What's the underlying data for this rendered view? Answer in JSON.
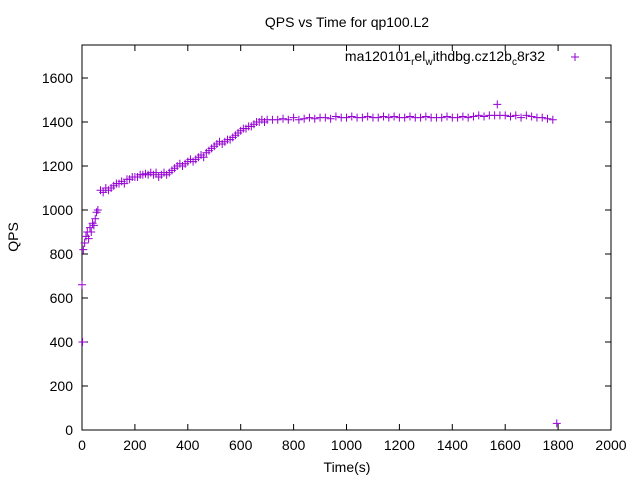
{
  "chart_data": {
    "type": "scatter",
    "title": "QPS vs Time for qp100.L2",
    "xlabel": "Time(s)",
    "ylabel": "QPS",
    "xlim": [
      0,
      2000
    ],
    "ylim": [
      0,
      1750
    ],
    "xticks": [
      0,
      200,
      400,
      600,
      800,
      1000,
      1200,
      1400,
      1600,
      1800,
      2000
    ],
    "yticks": [
      0,
      200,
      400,
      600,
      800,
      1000,
      1200,
      1400,
      1600
    ],
    "grid": false,
    "legend_position": "top-right",
    "marker": "plus",
    "color": "#9400d3",
    "legend_text": {
      "p1": "ma120101",
      "s1": "r",
      "p2": "el",
      "s2": "w",
      "p3": "ithdbg.cz12b",
      "s3": "c",
      "p4": "8r32"
    },
    "series": [
      {
        "points": [
          [
            0,
            660
          ],
          [
            2,
            400
          ],
          [
            5,
            820
          ],
          [
            10,
            850
          ],
          [
            15,
            880
          ],
          [
            20,
            900
          ],
          [
            25,
            870
          ],
          [
            30,
            920
          ],
          [
            35,
            900
          ],
          [
            40,
            940
          ],
          [
            45,
            930
          ],
          [
            50,
            960
          ],
          [
            55,
            990
          ],
          [
            60,
            1000
          ],
          [
            70,
            1090
          ],
          [
            80,
            1080
          ],
          [
            90,
            1100
          ],
          [
            100,
            1090
          ],
          [
            110,
            1100
          ],
          [
            120,
            1110
          ],
          [
            130,
            1120
          ],
          [
            140,
            1120
          ],
          [
            150,
            1130
          ],
          [
            160,
            1120
          ],
          [
            170,
            1140
          ],
          [
            180,
            1140
          ],
          [
            190,
            1150
          ],
          [
            200,
            1150
          ],
          [
            210,
            1150
          ],
          [
            220,
            1160
          ],
          [
            230,
            1160
          ],
          [
            240,
            1165
          ],
          [
            250,
            1160
          ],
          [
            260,
            1170
          ],
          [
            270,
            1160
          ],
          [
            280,
            1170
          ],
          [
            290,
            1150
          ],
          [
            300,
            1160
          ],
          [
            310,
            1170
          ],
          [
            320,
            1160
          ],
          [
            330,
            1170
          ],
          [
            340,
            1180
          ],
          [
            350,
            1190
          ],
          [
            360,
            1200
          ],
          [
            370,
            1210
          ],
          [
            380,
            1200
          ],
          [
            390,
            1210
          ],
          [
            400,
            1220
          ],
          [
            410,
            1230
          ],
          [
            420,
            1220
          ],
          [
            430,
            1230
          ],
          [
            440,
            1240
          ],
          [
            450,
            1250
          ],
          [
            460,
            1240
          ],
          [
            470,
            1260
          ],
          [
            480,
            1270
          ],
          [
            490,
            1280
          ],
          [
            500,
            1290
          ],
          [
            510,
            1300
          ],
          [
            520,
            1310
          ],
          [
            530,
            1300
          ],
          [
            540,
            1310
          ],
          [
            550,
            1320
          ],
          [
            560,
            1320
          ],
          [
            570,
            1330
          ],
          [
            580,
            1340
          ],
          [
            590,
            1350
          ],
          [
            600,
            1360
          ],
          [
            610,
            1370
          ],
          [
            620,
            1370
          ],
          [
            630,
            1380
          ],
          [
            640,
            1380
          ],
          [
            650,
            1390
          ],
          [
            660,
            1400
          ],
          [
            670,
            1400
          ],
          [
            680,
            1410
          ],
          [
            690,
            1400
          ],
          [
            700,
            1410
          ],
          [
            720,
            1410
          ],
          [
            740,
            1410
          ],
          [
            760,
            1415
          ],
          [
            780,
            1410
          ],
          [
            800,
            1420
          ],
          [
            820,
            1410
          ],
          [
            840,
            1415
          ],
          [
            860,
            1420
          ],
          [
            880,
            1415
          ],
          [
            900,
            1420
          ],
          [
            920,
            1420
          ],
          [
            940,
            1415
          ],
          [
            960,
            1425
          ],
          [
            980,
            1420
          ],
          [
            1000,
            1420
          ],
          [
            1020,
            1425
          ],
          [
            1040,
            1420
          ],
          [
            1060,
            1420
          ],
          [
            1080,
            1425
          ],
          [
            1100,
            1420
          ],
          [
            1120,
            1420
          ],
          [
            1140,
            1425
          ],
          [
            1160,
            1420
          ],
          [
            1180,
            1425
          ],
          [
            1200,
            1420
          ],
          [
            1220,
            1420
          ],
          [
            1240,
            1425
          ],
          [
            1260,
            1420
          ],
          [
            1280,
            1420
          ],
          [
            1300,
            1425
          ],
          [
            1320,
            1420
          ],
          [
            1340,
            1420
          ],
          [
            1360,
            1420
          ],
          [
            1380,
            1425
          ],
          [
            1400,
            1420
          ],
          [
            1420,
            1420
          ],
          [
            1440,
            1425
          ],
          [
            1460,
            1420
          ],
          [
            1480,
            1425
          ],
          [
            1500,
            1430
          ],
          [
            1520,
            1425
          ],
          [
            1540,
            1430
          ],
          [
            1560,
            1430
          ],
          [
            1570,
            1480
          ],
          [
            1580,
            1430
          ],
          [
            1600,
            1430
          ],
          [
            1620,
            1425
          ],
          [
            1640,
            1430
          ],
          [
            1660,
            1420
          ],
          [
            1680,
            1430
          ],
          [
            1700,
            1425
          ],
          [
            1720,
            1420
          ],
          [
            1740,
            1420
          ],
          [
            1760,
            1415
          ],
          [
            1780,
            1410
          ],
          [
            1795,
            30
          ]
        ]
      }
    ]
  }
}
